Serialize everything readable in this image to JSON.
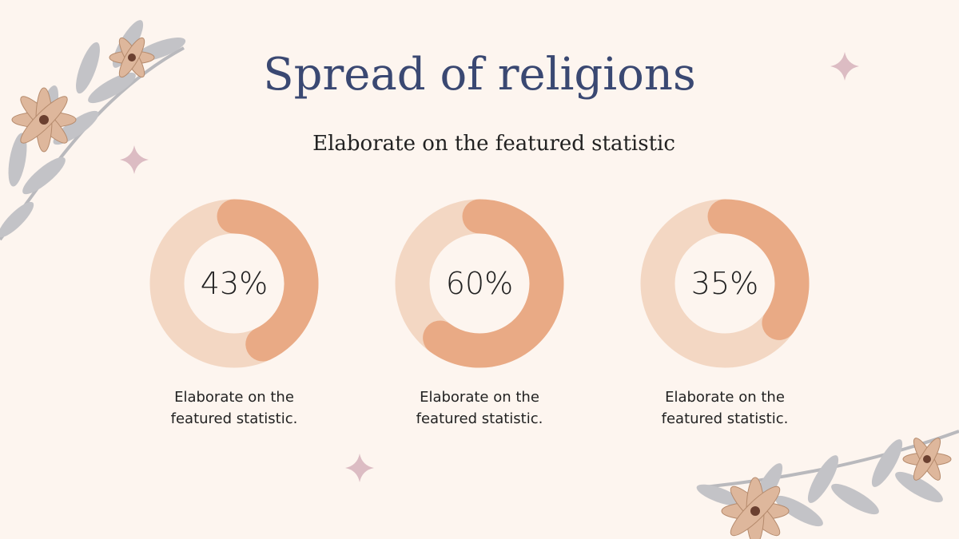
{
  "title": "Spread of religions",
  "subtitle": "Elaborate on the featured statistic",
  "chart_data": [
    {
      "type": "donut",
      "values": [
        43
      ],
      "value_labels": [
        "43%"
      ],
      "color": "#e9aa85",
      "track_color": "#f3d7c3",
      "caption": "Elaborate on the featured statistic."
    },
    {
      "type": "donut",
      "values": [
        60
      ],
      "value_labels": [
        "60%"
      ],
      "color": "#e9aa85",
      "track_color": "#f3d7c3",
      "caption": "Elaborate on the featured statistic."
    },
    {
      "type": "donut",
      "values": [
        35
      ],
      "value_labels": [
        "35%"
      ],
      "color": "#e9aa85",
      "track_color": "#f3d7c3",
      "caption": "Elaborate on the featured statistic."
    }
  ]
}
